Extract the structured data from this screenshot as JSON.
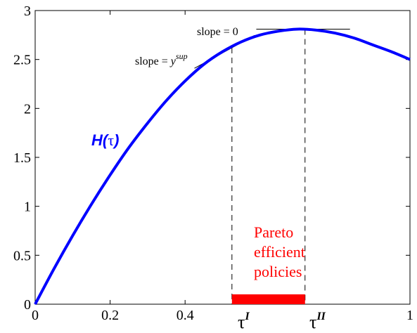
{
  "chart_data": {
    "type": "line",
    "xlim": [
      0,
      1
    ],
    "ylim": [
      0,
      3
    ],
    "xticks": [
      "0",
      "0.2",
      "0.4",
      "1"
    ],
    "yticks": [
      "0",
      "0.5",
      "1",
      "1.5",
      "2",
      "2.5",
      "3"
    ],
    "grid": false,
    "series": [
      {
        "name": "H(τ)",
        "color": "#0000ff",
        "x": [
          0,
          0.05,
          0.1,
          0.15,
          0.2,
          0.25,
          0.3,
          0.35,
          0.4,
          0.45,
          0.5,
          0.55,
          0.6,
          0.65,
          0.7,
          0.75,
          0.8,
          0.85,
          0.9,
          0.95,
          1.0
        ],
        "values": [
          0.0,
          0.36,
          0.7,
          1.02,
          1.32,
          1.6,
          1.85,
          2.08,
          2.28,
          2.45,
          2.58,
          2.68,
          2.75,
          2.79,
          2.81,
          2.8,
          2.77,
          2.72,
          2.65,
          2.58,
          2.5
        ]
      }
    ],
    "curve_label": {
      "main": "H(",
      "tau": "τ",
      "close": ")"
    },
    "tau_I": {
      "x": 0.525,
      "y": 2.62,
      "base": "τ",
      "sup": "I"
    },
    "tau_II": {
      "x": 0.72,
      "y": 2.81,
      "base": "τ",
      "sup": "II"
    },
    "annotations": {
      "slope_zero": "slope = 0",
      "slope_sup_prefix": "slope = ",
      "slope_sup_var": "y",
      "slope_sup_exp": "sup"
    },
    "pareto": {
      "lines": [
        "Pareto",
        "efficient",
        "policies"
      ],
      "range": [
        0.525,
        0.72
      ],
      "color": "#ff0000"
    }
  }
}
